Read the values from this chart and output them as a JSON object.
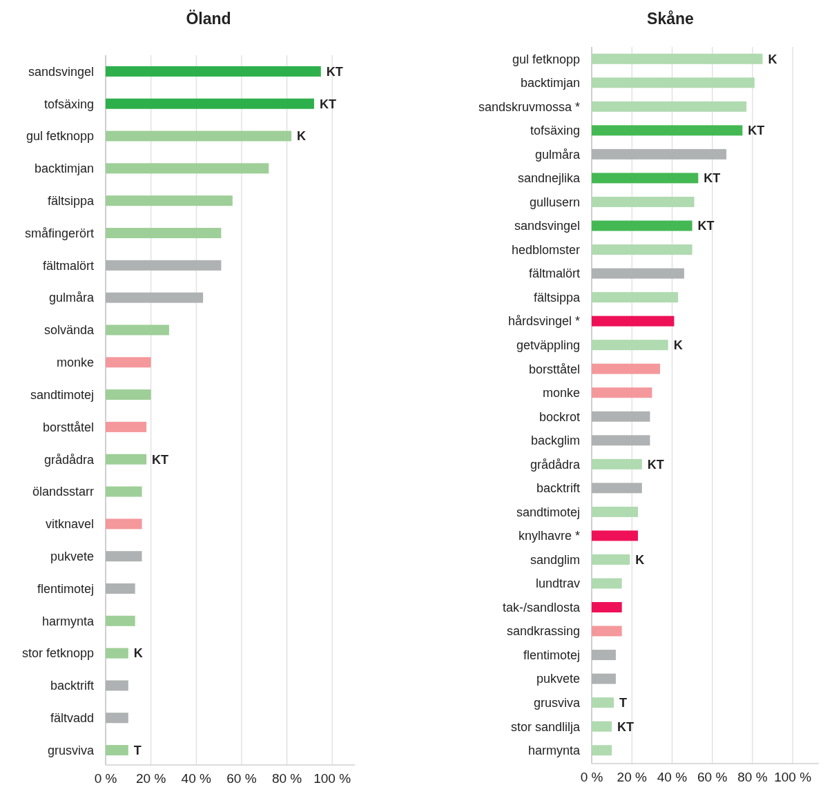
{
  "chart_data": [
    {
      "type": "bar",
      "orientation": "horizontal",
      "title": "Öland",
      "categories": [
        "sandsvingel",
        "tofsäxing",
        "gul fetknopp",
        "backtimjan",
        "fältsippa",
        "småfingerört",
        "fältmalört",
        "gulmåra",
        "solvända",
        "monke",
        "sandtimotej",
        "borsttåtel",
        "grådådra",
        "ölandsstarr",
        "vitknavel",
        "pukvete",
        "flentimotej",
        "harmynta",
        "stor fetknopp",
        "backtrift",
        "fältvadd",
        "grusviva"
      ],
      "values": [
        95,
        92,
        82,
        72,
        56,
        51,
        51,
        43,
        28,
        20,
        20,
        18,
        18,
        16,
        16,
        16,
        13,
        13,
        10,
        10,
        10,
        10
      ],
      "colors": [
        "#2db04b",
        "#2db04b",
        "#9ecf98",
        "#9ecf98",
        "#9ecf98",
        "#9ecf98",
        "#afb2b3",
        "#afb2b3",
        "#9ecf98",
        "#f4989c",
        "#9ecf98",
        "#f4989c",
        "#9ecf98",
        "#9ecf98",
        "#f4989c",
        "#afb2b3",
        "#afb2b3",
        "#9ecf98",
        "#9ecf98",
        "#afb2b3",
        "#afb2b3",
        "#9ecf98"
      ],
      "xlim": [
        0,
        110
      ],
      "xticks": [
        {
          "value": 0,
          "label": "0 %"
        },
        {
          "value": 20,
          "label": "20 %"
        },
        {
          "value": 40,
          "label": "40 %"
        },
        {
          "value": 60,
          "label": "60 %"
        },
        {
          "value": 80,
          "label": "80 %"
        },
        {
          "value": 100,
          "label": "100 %"
        }
      ],
      "grid": "x",
      "value_labels": [
        "KT",
        "KT",
        "K",
        null,
        null,
        null,
        null,
        null,
        null,
        null,
        null,
        null,
        "KT",
        null,
        null,
        null,
        null,
        null,
        "K",
        null,
        null,
        "T"
      ]
    },
    {
      "type": "bar",
      "orientation": "horizontal",
      "title": "Skåne",
      "categories": [
        "gul fetknopp",
        "backtimjan",
        "sandskruvmossa *",
        "tofsäxing",
        "gulmåra",
        "sandnejlika",
        "gullusern",
        "sandsvingel",
        "hedblomster",
        "fältmalört",
        "fältsippa",
        "hårdsvingel *",
        "getväppling",
        "borsttåtel",
        "monke",
        "bockrot",
        "backglim",
        "grådådra",
        "backtrift",
        "sandtimotej",
        "knylhavre *",
        "sandglim",
        "lundtrav",
        "tak-/sandlosta",
        "sandkrassing",
        "flentimotej",
        "pukvete",
        "grusviva",
        "stor sandlilja",
        "harmynta"
      ],
      "values": [
        85,
        81,
        77,
        75,
        67,
        53,
        51,
        50,
        50,
        46,
        43,
        41,
        38,
        34,
        30,
        29,
        29,
        25,
        25,
        23,
        23,
        19,
        15,
        15,
        15,
        12,
        12,
        11,
        10,
        10
      ],
      "colors": [
        "#b0dab0",
        "#b0dab0",
        "#b0dab0",
        "#44b853",
        "#afb2b3",
        "#44b853",
        "#b0dab0",
        "#44b853",
        "#b0dab0",
        "#afb2b3",
        "#b0dab0",
        "#ee1157",
        "#b0dab0",
        "#f4989c",
        "#f4989c",
        "#afb2b3",
        "#afb2b3",
        "#b0dab0",
        "#afb2b3",
        "#b0dab0",
        "#ee1157",
        "#b0dab0",
        "#b0dab0",
        "#ee1157",
        "#f4989c",
        "#afb2b3",
        "#afb2b3",
        "#b0dab0",
        "#b0dab0",
        "#b0dab0"
      ],
      "xlim": [
        0,
        113
      ],
      "xticks": [
        {
          "value": 0,
          "label": "0 %"
        },
        {
          "value": 20,
          "label": "20 %"
        },
        {
          "value": 40,
          "label": "40 %"
        },
        {
          "value": 60,
          "label": "60 %"
        },
        {
          "value": 80,
          "label": "80 %"
        },
        {
          "value": 100,
          "label": "100 %"
        }
      ],
      "grid": "x",
      "value_labels": [
        "K",
        null,
        null,
        "KT",
        null,
        "KT",
        null,
        "KT",
        null,
        null,
        null,
        null,
        "K",
        null,
        null,
        null,
        null,
        "KT",
        null,
        null,
        null,
        "K",
        null,
        null,
        null,
        null,
        null,
        "T",
        "KT",
        null
      ]
    }
  ]
}
